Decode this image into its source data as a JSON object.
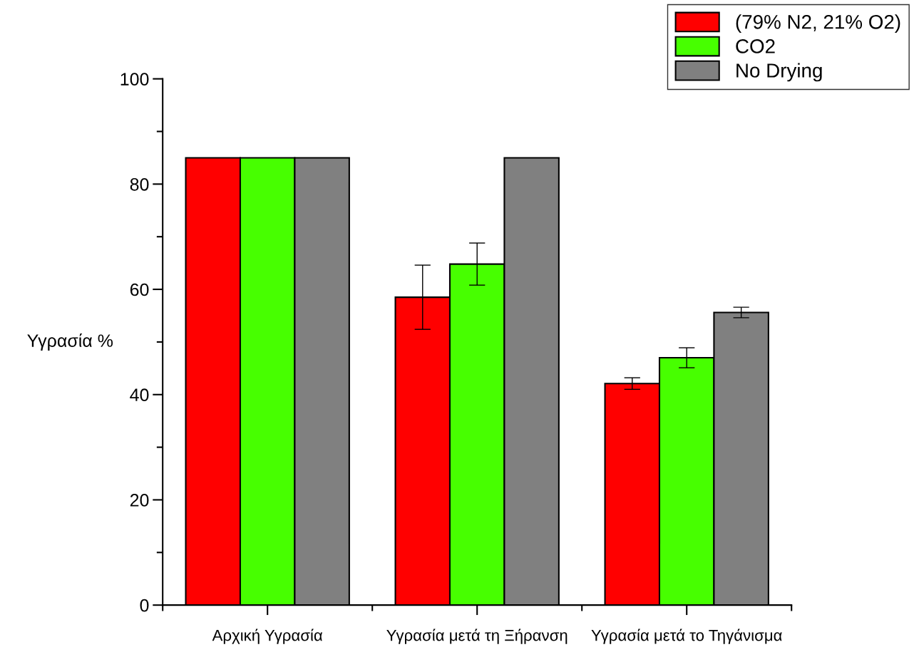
{
  "chart_data": {
    "type": "bar",
    "ylabel": "Υγρασία %",
    "categories": [
      "Αρχική Υγρασία",
      "Υγρασία μετά τη Ξήρανση",
      "Υγρασία μετά το Τηγάνισμα"
    ],
    "series": [
      {
        "name": "(79% N2, 21% O2)",
        "color": "#ff0000",
        "values": [
          85,
          58.5,
          42.1
        ],
        "errors": [
          null,
          6.1,
          1.1
        ]
      },
      {
        "name": "CO2",
        "color": "#47ff00",
        "values": [
          85,
          64.8,
          47.0
        ],
        "errors": [
          null,
          4.0,
          1.9
        ]
      },
      {
        "name": "No Drying",
        "color": "#808080",
        "values": [
          85,
          85,
          55.6
        ],
        "errors": [
          null,
          null,
          1.0
        ]
      }
    ],
    "ylim": [
      0,
      100
    ],
    "yticks": [
      0,
      20,
      40,
      60,
      80,
      100
    ],
    "grid": false,
    "legend": "top right"
  }
}
